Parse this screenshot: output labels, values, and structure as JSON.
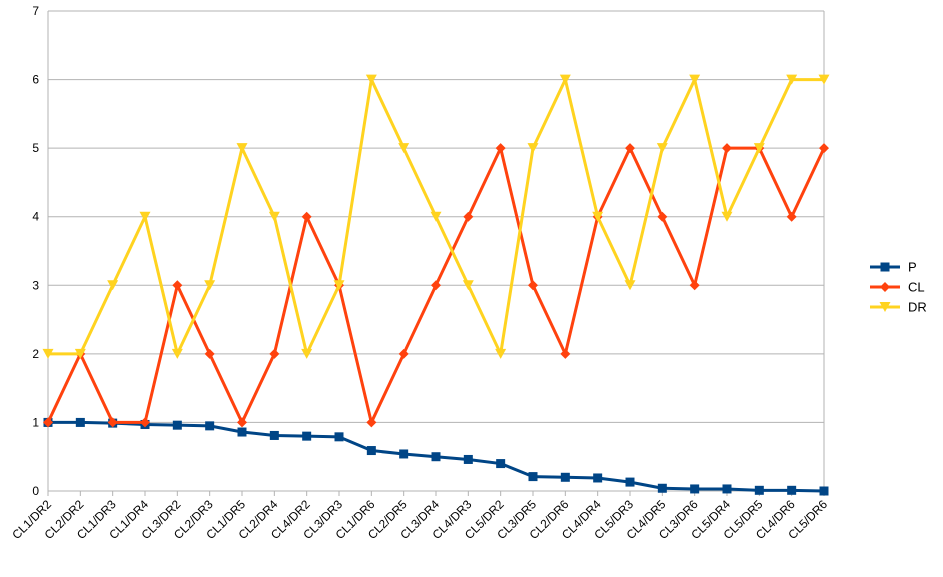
{
  "chart_data": {
    "type": "line",
    "title": "",
    "xlabel": "",
    "ylabel": "",
    "ylim": [
      0,
      7
    ],
    "yticks": [
      0,
      1,
      2,
      3,
      4,
      5,
      6,
      7
    ],
    "grid": "horizontal",
    "legend_position": "right",
    "categories": [
      "CL1/DR2",
      "CL2/DR2",
      "CL1/DR3",
      "CL1/DR4",
      "CL3/DR2",
      "CL2/DR3",
      "CL1/DR5",
      "CL2/DR4",
      "CL4/DR2",
      "CL3/DR3",
      "CL1/DR6",
      "CL2/DR5",
      "CL3/DR4",
      "CL4/DR3",
      "CL5/DR2",
      "CL3/DR5",
      "CL2/DR6",
      "CL4/DR4",
      "CL5/DR3",
      "CL4/DR5",
      "CL3/DR6",
      "CL5/DR4",
      "CL5/DR5",
      "CL4/DR6",
      "CL5/DR6"
    ],
    "series": [
      {
        "name": "P",
        "color": "#004586",
        "marker": "square",
        "values": [
          1.0,
          1.0,
          0.99,
          0.97,
          0.96,
          0.95,
          0.86,
          0.81,
          0.8,
          0.79,
          0.59,
          0.54,
          0.5,
          0.46,
          0.4,
          0.21,
          0.2,
          0.19,
          0.13,
          0.04,
          0.03,
          0.03,
          0.01,
          0.01,
          0.0
        ]
      },
      {
        "name": "CL",
        "color": "#ff420e",
        "marker": "diamond",
        "values": [
          1,
          2,
          1,
          1,
          3,
          2,
          1,
          2,
          4,
          3,
          1,
          2,
          3,
          4,
          5,
          3,
          2,
          4,
          5,
          4,
          3,
          5,
          5,
          4,
          5
        ]
      },
      {
        "name": "DR",
        "color": "#ffd320",
        "marker": "triangle-down",
        "values": [
          2,
          2,
          3,
          4,
          2,
          3,
          5,
          4,
          2,
          3,
          6,
          5,
          4,
          3,
          2,
          5,
          6,
          4,
          3,
          5,
          6,
          4,
          5,
          6,
          6
        ]
      }
    ]
  }
}
